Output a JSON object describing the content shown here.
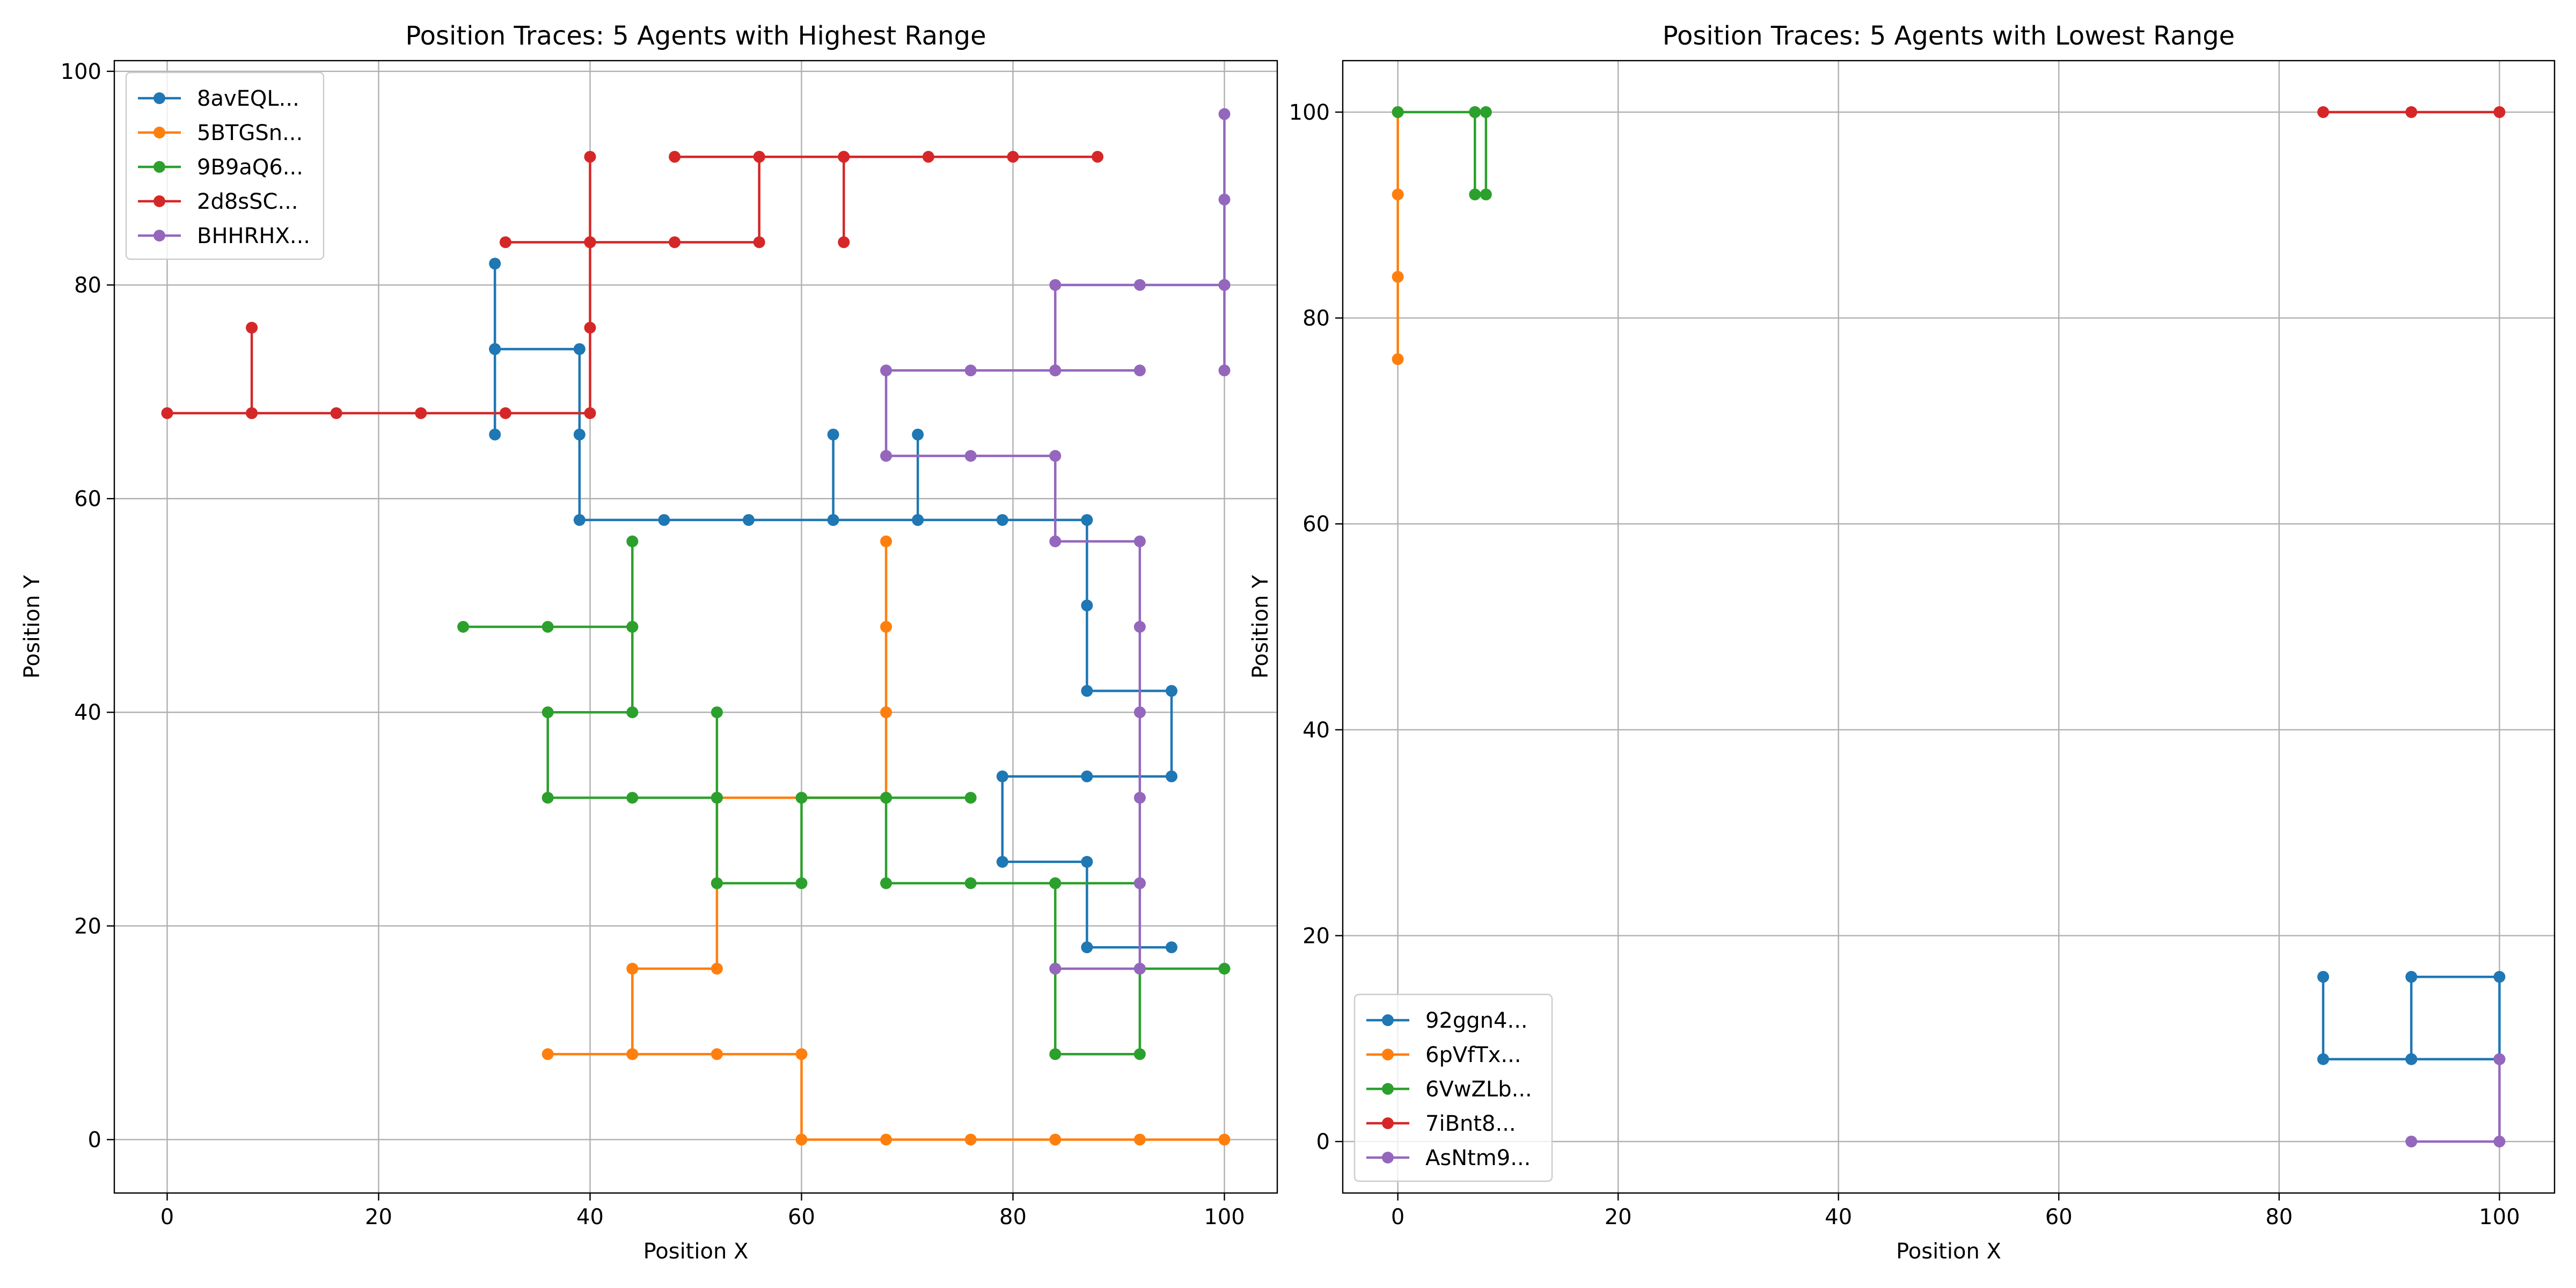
{
  "chart_data": [
    {
      "type": "line",
      "title": "Position Traces: 5 Agents with Highest Range",
      "xlabel": "Position X",
      "ylabel": "Position Y",
      "xlim": [
        -5,
        105
      ],
      "ylim": [
        -5,
        101
      ],
      "xticks": [
        0,
        20,
        40,
        60,
        80,
        100
      ],
      "yticks": [
        0,
        20,
        40,
        60,
        80,
        100
      ],
      "grid": true,
      "legend_position": "top-left",
      "series": [
        {
          "name": "8avEQL...",
          "color": "#1f77b4",
          "points": [
            [
              31,
              66
            ],
            [
              31,
              74
            ],
            [
              31,
              82
            ],
            [
              31,
              74
            ],
            [
              39,
              74
            ],
            [
              39,
              66
            ],
            [
              39,
              58
            ],
            [
              47,
              58
            ],
            [
              55,
              58
            ],
            [
              63,
              58
            ],
            [
              63,
              66
            ],
            [
              63,
              58
            ],
            [
              71,
              58
            ],
            [
              71,
              66
            ],
            [
              71,
              58
            ],
            [
              79,
              58
            ],
            [
              87,
              58
            ],
            [
              87,
              50
            ],
            [
              87,
              42
            ],
            [
              95,
              42
            ],
            [
              95,
              34
            ],
            [
              87,
              34
            ],
            [
              79,
              34
            ],
            [
              79,
              26
            ],
            [
              87,
              26
            ],
            [
              87,
              18
            ],
            [
              95,
              18
            ]
          ]
        },
        {
          "name": "5BTGSn...",
          "color": "#ff7f0e",
          "points": [
            [
              68,
              56
            ],
            [
              68,
              48
            ],
            [
              68,
              40
            ],
            [
              68,
              32
            ],
            [
              60,
              32
            ],
            [
              52,
              32
            ],
            [
              52,
              24
            ],
            [
              52,
              16
            ],
            [
              44,
              16
            ],
            [
              44,
              8
            ],
            [
              36,
              8
            ],
            [
              44,
              8
            ],
            [
              52,
              8
            ],
            [
              60,
              8
            ],
            [
              60,
              0
            ],
            [
              68,
              0
            ],
            [
              76,
              0
            ],
            [
              84,
              0
            ],
            [
              92,
              0
            ],
            [
              100,
              0
            ]
          ]
        },
        {
          "name": "9B9aQ6...",
          "color": "#2ca02c",
          "points": [
            [
              28,
              48
            ],
            [
              36,
              48
            ],
            [
              44,
              48
            ],
            [
              44,
              56
            ],
            [
              44,
              48
            ],
            [
              44,
              40
            ],
            [
              36,
              40
            ],
            [
              36,
              32
            ],
            [
              44,
              32
            ],
            [
              52,
              32
            ],
            [
              52,
              40
            ],
            [
              52,
              32
            ],
            [
              52,
              24
            ],
            [
              60,
              24
            ],
            [
              60,
              32
            ],
            [
              68,
              32
            ],
            [
              76,
              32
            ],
            [
              68,
              32
            ],
            [
              68,
              24
            ],
            [
              76,
              24
            ],
            [
              84,
              24
            ],
            [
              92,
              24
            ],
            [
              84,
              24
            ],
            [
              84,
              16
            ],
            [
              84,
              8
            ],
            [
              92,
              8
            ],
            [
              92,
              16
            ],
            [
              100,
              16
            ]
          ]
        },
        {
          "name": "2d8sSC...",
          "color": "#d62728",
          "points": [
            [
              0,
              68
            ],
            [
              8,
              68
            ],
            [
              8,
              76
            ],
            [
              8,
              68
            ],
            [
              16,
              68
            ],
            [
              24,
              68
            ],
            [
              32,
              68
            ],
            [
              40,
              68
            ],
            [
              40,
              76
            ],
            [
              40,
              84
            ],
            [
              40,
              92
            ],
            [
              40,
              84
            ],
            [
              32,
              84
            ],
            [
              40,
              84
            ],
            [
              48,
              84
            ],
            [
              56,
              84
            ],
            [
              56,
              92
            ],
            [
              48,
              92
            ],
            [
              56,
              92
            ],
            [
              64,
              92
            ],
            [
              64,
              84
            ],
            [
              64,
              92
            ],
            [
              72,
              92
            ],
            [
              80,
              92
            ],
            [
              88,
              92
            ]
          ]
        },
        {
          "name": "BHHRHX...",
          "color": "#9467bd",
          "points": [
            [
              100,
              96
            ],
            [
              100,
              88
            ],
            [
              100,
              80
            ],
            [
              100,
              72
            ],
            [
              100,
              80
            ],
            [
              92,
              80
            ],
            [
              84,
              80
            ],
            [
              84,
              72
            ],
            [
              92,
              72
            ],
            [
              84,
              72
            ],
            [
              76,
              72
            ],
            [
              68,
              72
            ],
            [
              68,
              64
            ],
            [
              76,
              64
            ],
            [
              84,
              64
            ],
            [
              84,
              56
            ],
            [
              92,
              56
            ],
            [
              92,
              48
            ],
            [
              92,
              40
            ],
            [
              92,
              32
            ],
            [
              92,
              24
            ],
            [
              92,
              16
            ],
            [
              84,
              16
            ]
          ]
        }
      ]
    },
    {
      "type": "line",
      "title": "Position Traces: 5 Agents with Lowest Range",
      "xlabel": "Position X",
      "ylabel": "Position Y",
      "xlim": [
        -5,
        105
      ],
      "ylim": [
        -5,
        105
      ],
      "xticks": [
        0,
        20,
        40,
        60,
        80,
        100
      ],
      "yticks": [
        0,
        20,
        40,
        60,
        80,
        100
      ],
      "grid": true,
      "legend_position": "bottom-left",
      "series": [
        {
          "name": "92ggn4...",
          "color": "#1f77b4",
          "points": [
            [
              84,
              16
            ],
            [
              84,
              8
            ],
            [
              92,
              8
            ],
            [
              92,
              16
            ],
            [
              100,
              16
            ],
            [
              100,
              8
            ],
            [
              92,
              8
            ]
          ]
        },
        {
          "name": "6pVfTx...",
          "color": "#ff7f0e",
          "points": [
            [
              0,
              76
            ],
            [
              0,
              84
            ],
            [
              0,
              92
            ],
            [
              0,
              100
            ]
          ]
        },
        {
          "name": "6VwZLb...",
          "color": "#2ca02c",
          "points": [
            [
              0,
              100
            ],
            [
              7,
              100
            ],
            [
              7,
              92
            ],
            [
              8,
              92
            ],
            [
              8,
              100
            ],
            [
              7,
              100
            ]
          ]
        },
        {
          "name": "7iBnt8...",
          "color": "#d62728",
          "points": [
            [
              84,
              100
            ],
            [
              92,
              100
            ],
            [
              100,
              100
            ]
          ]
        },
        {
          "name": "AsNtm9...",
          "color": "#9467bd",
          "points": [
            [
              92,
              0
            ],
            [
              100,
              0
            ],
            [
              100,
              8
            ]
          ]
        }
      ]
    }
  ]
}
